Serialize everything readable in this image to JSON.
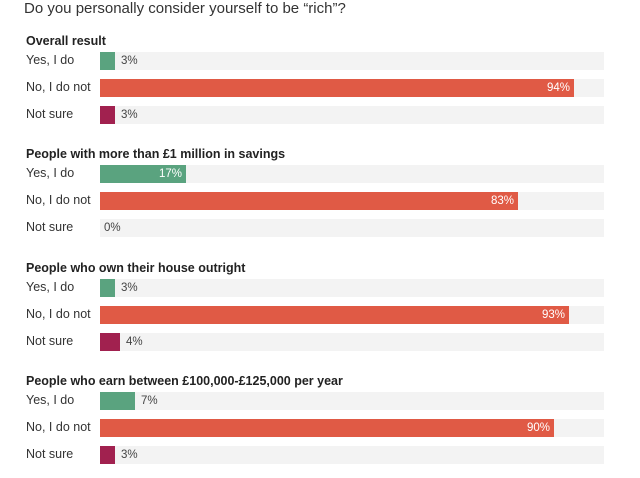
{
  "chart_data": {
    "type": "bar",
    "orientation": "horizontal",
    "title": "Do you personally consider yourself to be “rich”?",
    "unit": "%",
    "xlim": [
      0,
      100
    ],
    "colors": {
      "Yes, I do": "#5aa37f",
      "No, I do not": "#e05a45",
      "Not sure": "#a1214f"
    },
    "groups": [
      {
        "title": "Overall result",
        "categories": [
          "Yes, I do",
          "No, I do not",
          "Not sure"
        ],
        "values": [
          3,
          94,
          3
        ],
        "labels": [
          "3%",
          "94%",
          "3%"
        ]
      },
      {
        "title": "People with more than £1 million in savings",
        "categories": [
          "Yes, I do",
          "No, I do not",
          "Not sure"
        ],
        "values": [
          17,
          83,
          0
        ],
        "labels": [
          "17%",
          "83%",
          "0%"
        ]
      },
      {
        "title": "People who own their house outright",
        "categories": [
          "Yes, I do",
          "No, I do not",
          "Not sure"
        ],
        "values": [
          3,
          93,
          4
        ],
        "labels": [
          "3%",
          "93%",
          "4%"
        ]
      },
      {
        "title": "People who earn between £100,000-£125,000 per year",
        "categories": [
          "Yes, I do",
          "No, I do not",
          "Not sure"
        ],
        "values": [
          7,
          90,
          3
        ],
        "labels": [
          "7%",
          "90%",
          "3%"
        ]
      }
    ]
  }
}
